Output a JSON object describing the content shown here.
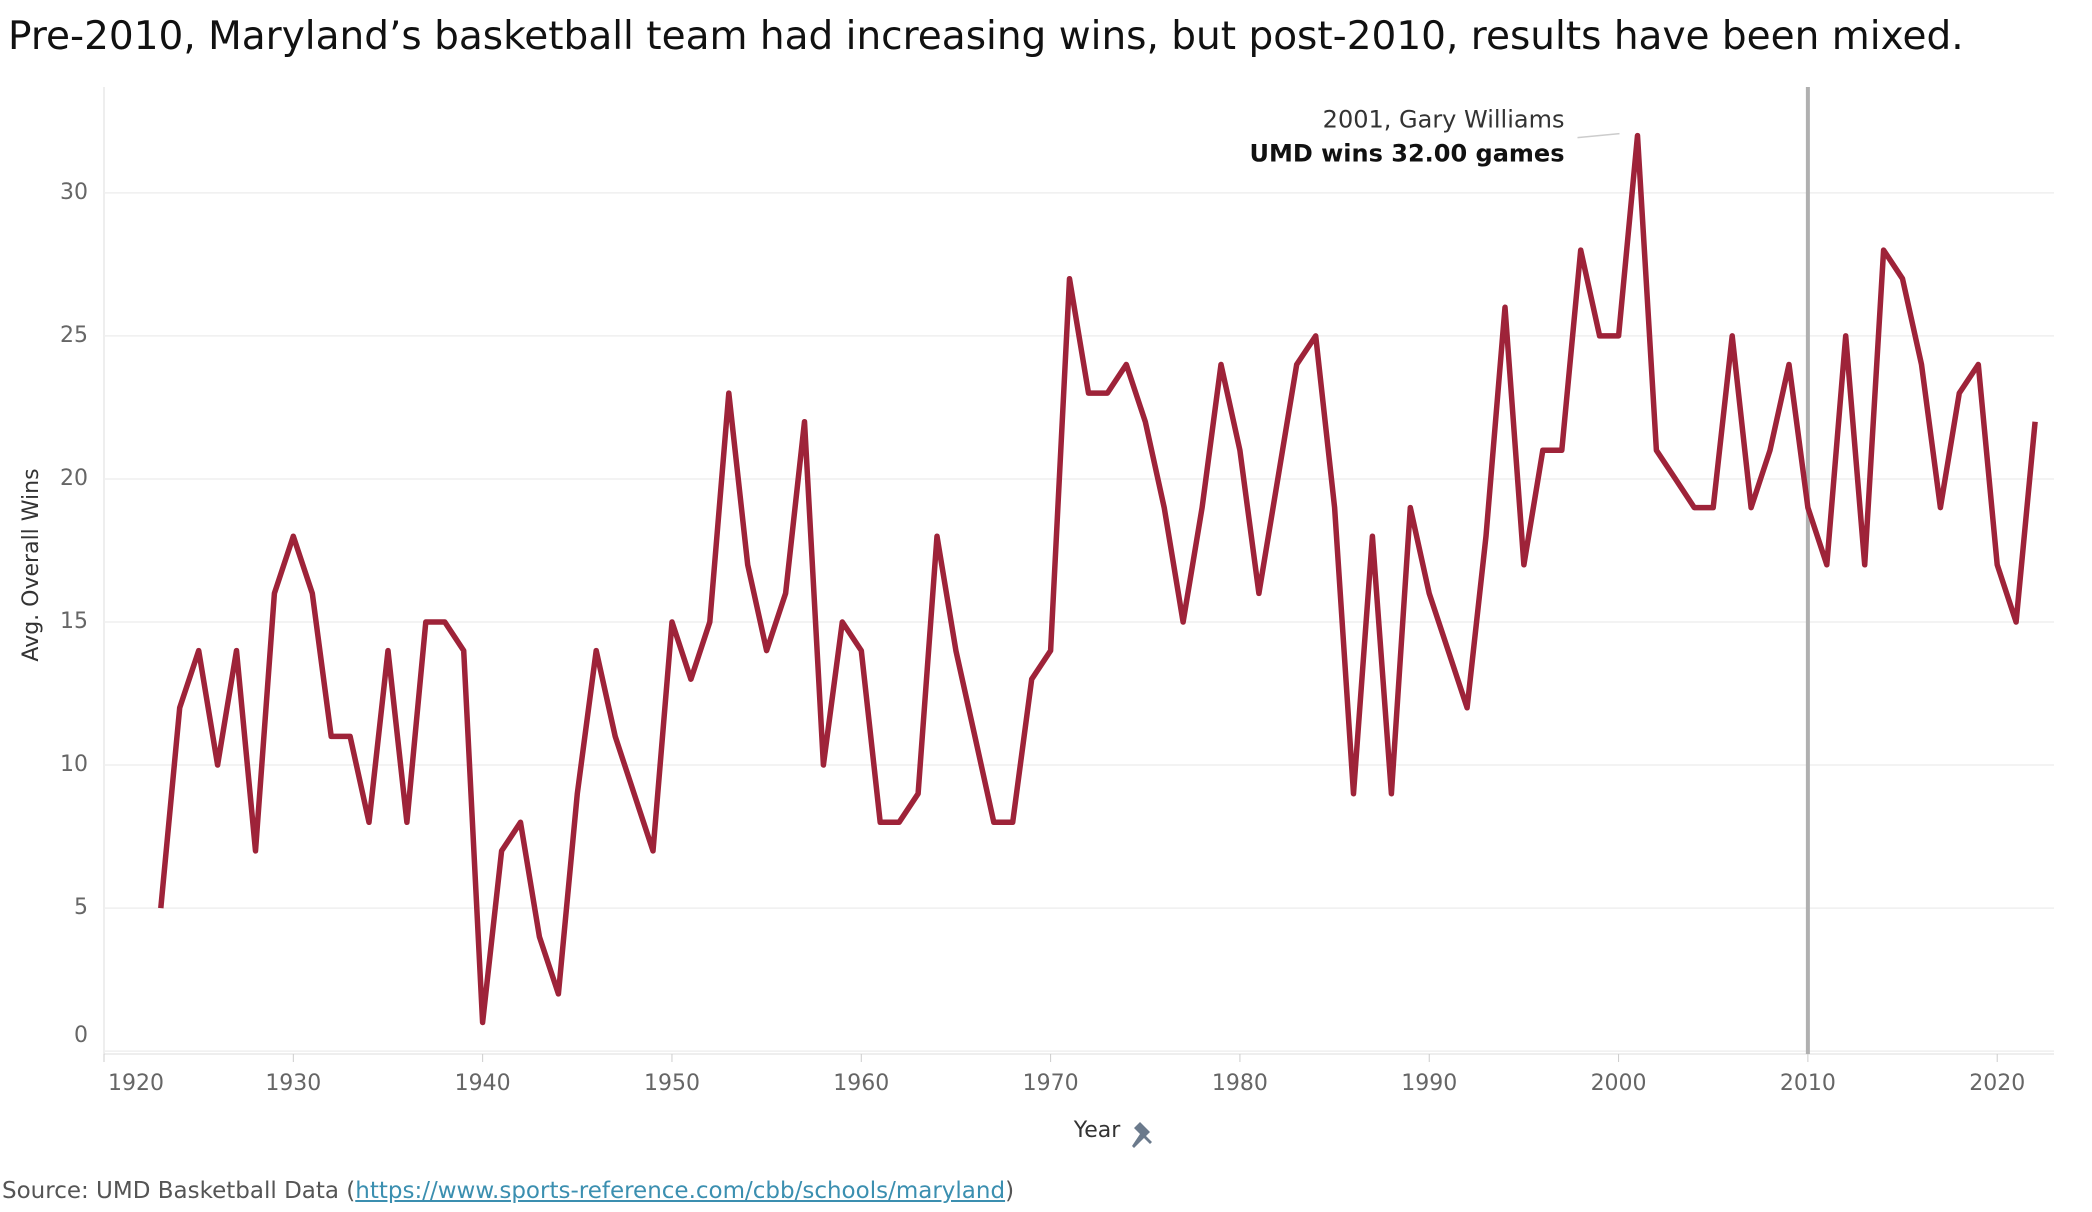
{
  "chart_data": {
    "type": "line",
    "title": "Pre-2010, Maryland’s basketball team had increasing wins, but post-2010, results have been mixed.",
    "x_label": "Year",
    "y_label": "Avg. Overall Wins",
    "x": [
      1923,
      1924,
      1925,
      1926,
      1927,
      1928,
      1929,
      1930,
      1931,
      1932,
      1933,
      1934,
      1935,
      1936,
      1937,
      1938,
      1939,
      1940,
      1941,
      1942,
      1943,
      1944,
      1945,
      1946,
      1947,
      1948,
      1949,
      1950,
      1951,
      1952,
      1953,
      1954,
      1955,
      1956,
      1957,
      1958,
      1959,
      1960,
      1961,
      1962,
      1963,
      1964,
      1965,
      1966,
      1967,
      1968,
      1969,
      1970,
      1971,
      1972,
      1973,
      1974,
      1975,
      1976,
      1977,
      1978,
      1979,
      1980,
      1981,
      1982,
      1983,
      1984,
      1985,
      1986,
      1987,
      1988,
      1989,
      1990,
      1991,
      1992,
      1993,
      1994,
      1995,
      1996,
      1997,
      1998,
      1999,
      2000,
      2001,
      2002,
      2003,
      2004,
      2005,
      2006,
      2007,
      2008,
      2009,
      2010,
      2011,
      2012,
      2013,
      2014,
      2015,
      2016,
      2017,
      2018,
      2019,
      2020,
      2021,
      2022
    ],
    "series": [
      {
        "name": "Avg. Overall Wins",
        "color": "#9e2339",
        "values": [
          5,
          12,
          14,
          10,
          14,
          7,
          16,
          18,
          16,
          11,
          11,
          8,
          14,
          8,
          15,
          15,
          14,
          1,
          7,
          8,
          4,
          2,
          9,
          14,
          11,
          9,
          7,
          15,
          13,
          15,
          23,
          17,
          14,
          16,
          22,
          10,
          15,
          14,
          8,
          8,
          9,
          18,
          14,
          11,
          8,
          8,
          13,
          14,
          27,
          23,
          23,
          24,
          22,
          19,
          15,
          19,
          24,
          21,
          16,
          20,
          24,
          25,
          19,
          9,
          18,
          9,
          19,
          16,
          14,
          12,
          18,
          26,
          17,
          21,
          21,
          28,
          25,
          25,
          32,
          21,
          20,
          19,
          19,
          25,
          19,
          21,
          24,
          19,
          17,
          25,
          17,
          28,
          27,
          24,
          19,
          23,
          24,
          17,
          15,
          22
        ]
      }
    ],
    "xlim": [
      1920,
      2023
    ],
    "xticks": [
      1920,
      1930,
      1940,
      1950,
      1960,
      1970,
      1980,
      1990,
      2000,
      2010,
      2020
    ],
    "ylim": [
      -0.1,
      33.7
    ],
    "yticks": [
      0,
      5,
      10,
      15,
      20,
      25,
      30
    ],
    "grid": true,
    "reference_line": {
      "x": 2010,
      "color": "#b0b0b0"
    },
    "annotation": {
      "lines": [
        "2001, Gary Williams",
        "UMD wins  32.00 games"
      ]
    },
    "source": {
      "prefix": "Source: UMD Basketball Data (",
      "link": "https://www.sports-reference.com/cbb/schools/maryland",
      "suffix": ")"
    }
  }
}
